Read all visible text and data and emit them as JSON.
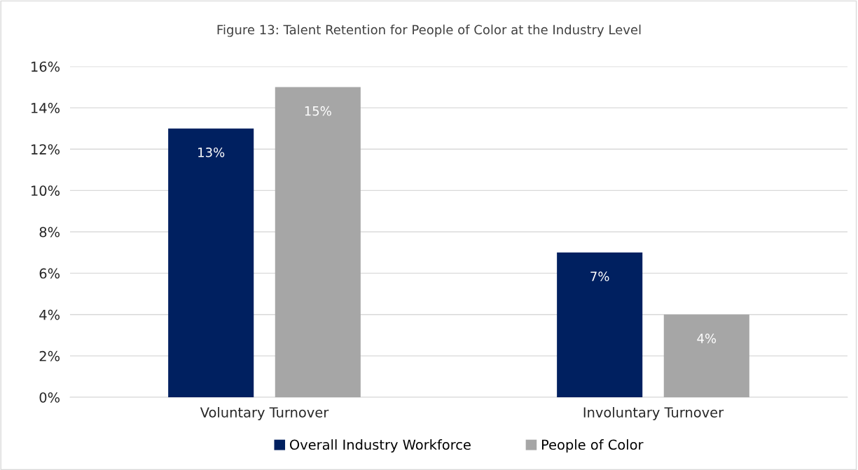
{
  "chart_data": {
    "type": "bar",
    "title": "Figure 13: Talent Retention for People of Color at the Industry Level",
    "categories": [
      "Voluntary Turnover",
      "Involuntary Turnover"
    ],
    "series": [
      {
        "name": "Overall Industry Workforce",
        "color": "#002060",
        "values": [
          13,
          7
        ],
        "value_labels": [
          "13%",
          "7%"
        ]
      },
      {
        "name": "People of Color",
        "color": "#a6a6a6",
        "values": [
          15,
          4
        ],
        "value_labels": [
          "15%",
          "4%"
        ]
      }
    ],
    "ylim": [
      0,
      16
    ],
    "yticks": [
      {
        "value": 0,
        "label": "0%"
      },
      {
        "value": 2,
        "label": "2%"
      },
      {
        "value": 4,
        "label": "4%"
      },
      {
        "value": 6,
        "label": "6%"
      },
      {
        "value": 8,
        "label": "8%"
      },
      {
        "value": 10,
        "label": "10%"
      },
      {
        "value": 12,
        "label": "12%"
      },
      {
        "value": 14,
        "label": "14%"
      },
      {
        "value": 16,
        "label": "16%"
      }
    ],
    "grid": "y",
    "legend": "bottom"
  }
}
